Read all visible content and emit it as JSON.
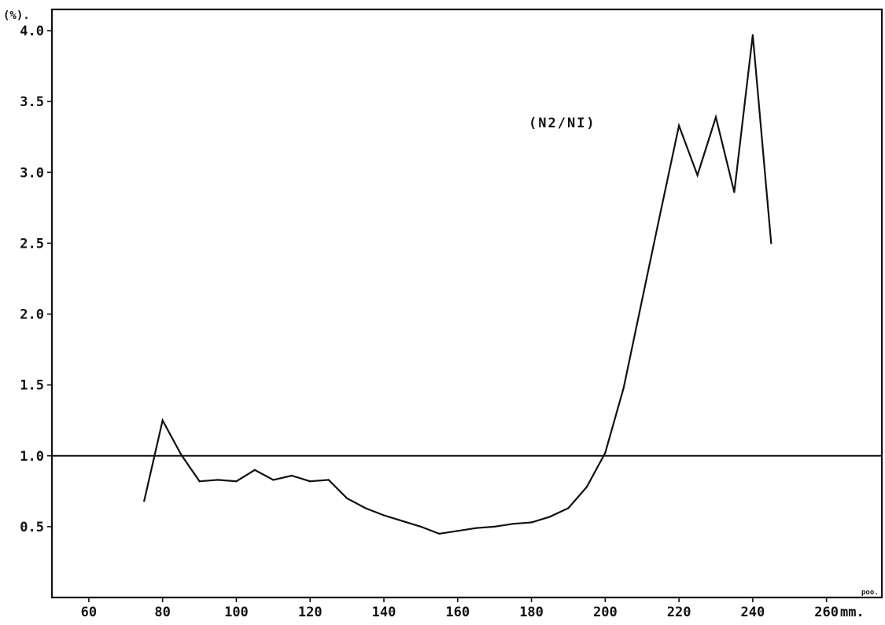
{
  "chart_data": {
    "type": "line",
    "title": "",
    "xlabel": "mm.",
    "xlabel_superscript": "poo.",
    "ylabel": "(%).",
    "annotation": "(N2/NI)",
    "xlim": [
      50,
      275
    ],
    "ylim": [
      0.0,
      4.15
    ],
    "x_ticks": [
      60,
      80,
      100,
      120,
      140,
      160,
      180,
      200,
      220,
      240,
      260
    ],
    "x_tick_labels": [
      "60",
      "80",
      "100",
      "120",
      "140",
      "160",
      "180",
      "200",
      "220",
      "240",
      "260"
    ],
    "y_ticks": [
      0.5,
      1.0,
      1.5,
      2.0,
      2.5,
      3.0,
      3.5,
      4.0
    ],
    "y_tick_labels": [
      "0.5",
      "1.0",
      "1.5",
      "2.0",
      "2.5",
      "3.0",
      "3.5",
      "4.0"
    ],
    "grid": false,
    "legend": "none",
    "reference_line": {
      "y": 1.0
    },
    "series": [
      {
        "color": "#111111",
        "x": [
          75,
          80,
          85,
          90,
          95,
          100,
          105,
          110,
          115,
          120,
          125,
          130,
          135,
          140,
          145,
          150,
          155,
          160,
          165,
          170,
          175,
          180,
          185,
          190,
          195,
          200,
          205,
          210,
          215,
          220,
          225,
          230,
          235,
          240,
          245
        ],
        "y": [
          0.68,
          1.25,
          1.01,
          0.82,
          0.83,
          0.82,
          0.9,
          0.83,
          0.86,
          0.82,
          0.83,
          0.7,
          0.63,
          0.58,
          0.54,
          0.5,
          0.45,
          0.47,
          0.49,
          0.5,
          0.52,
          0.53,
          0.57,
          0.63,
          0.78,
          1.02,
          1.48,
          2.1,
          2.72,
          3.33,
          2.98,
          3.39,
          2.86,
          3.97,
          2.5
        ]
      }
    ]
  }
}
